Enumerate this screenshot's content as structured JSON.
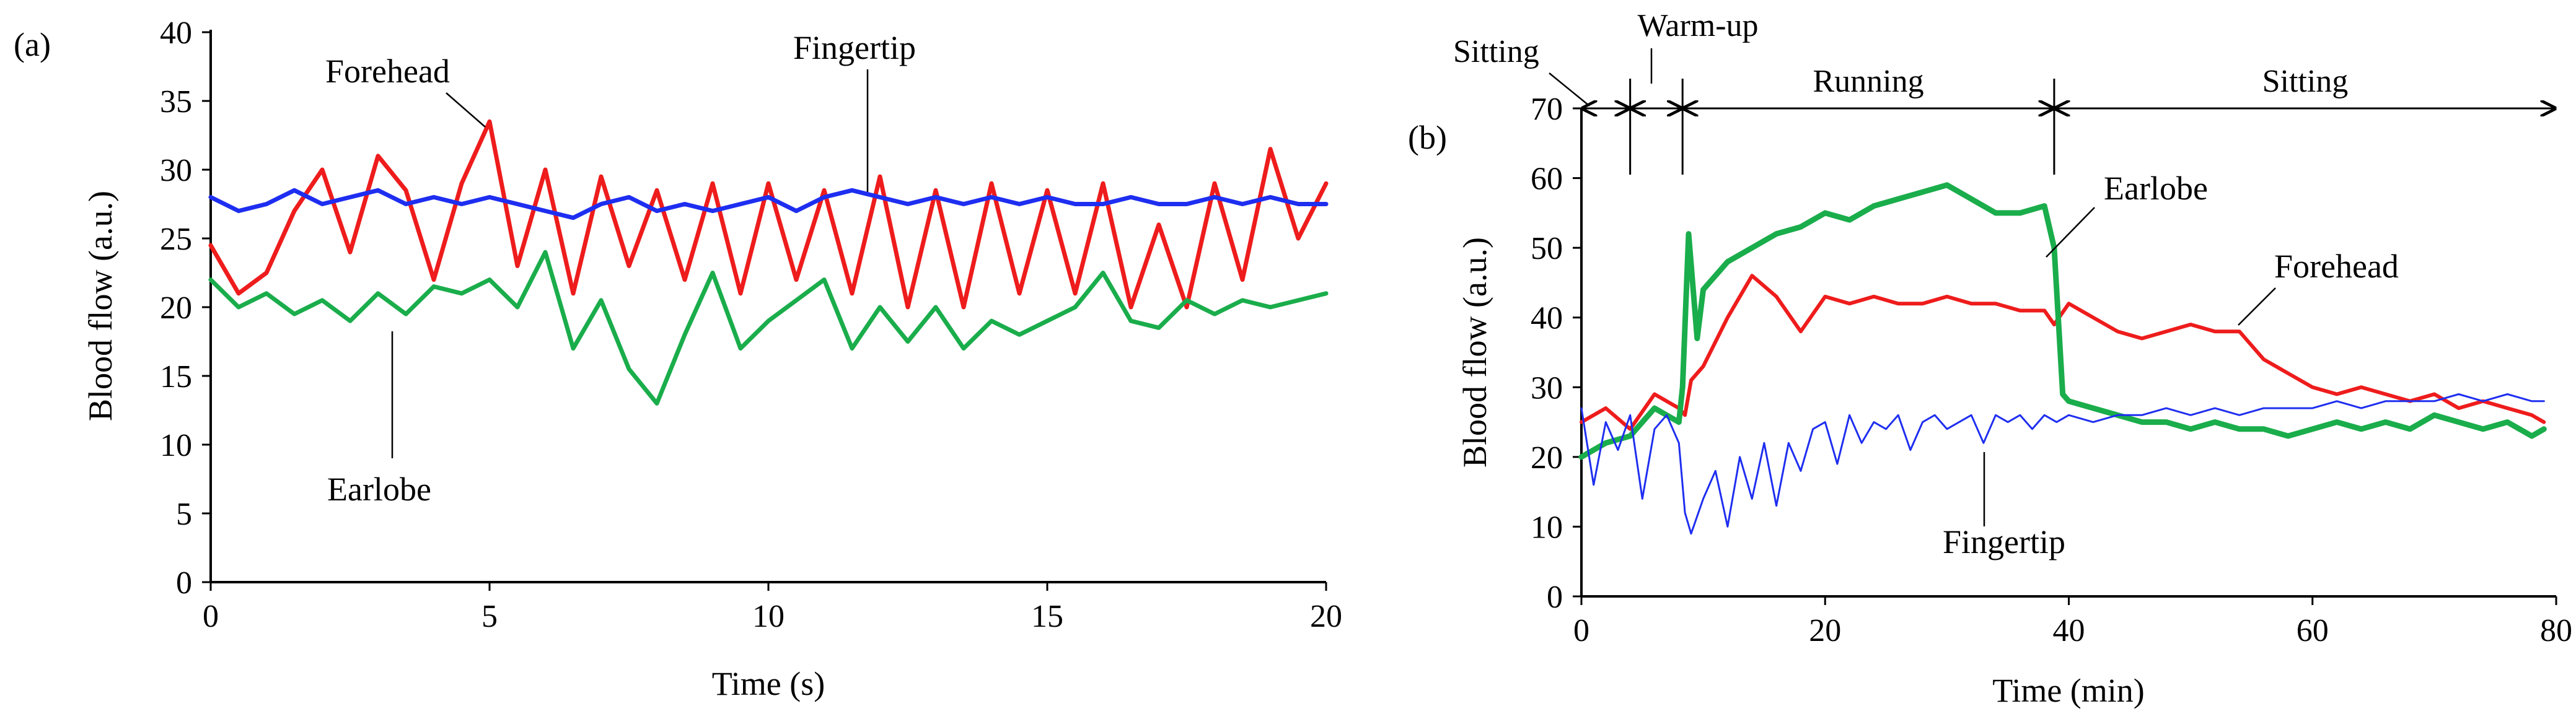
{
  "chart_data": [
    {
      "panel_label": "(a)",
      "type": "line",
      "xlabel": "Time (s)",
      "ylabel": "Blood flow (a.u.)",
      "xlim": [
        0,
        20
      ],
      "ylim": [
        0,
        40
      ],
      "xticks": [
        0,
        5,
        10,
        15,
        20
      ],
      "yticks": [
        0,
        5,
        10,
        15,
        20,
        25,
        30,
        35,
        40
      ],
      "grid": false,
      "legend": "none",
      "annotations": [
        {
          "text": "Forehead",
          "series": "Forehead"
        },
        {
          "text": "Fingertip",
          "series": "Fingertip"
        },
        {
          "text": "Earlobe",
          "series": "Earlobe"
        }
      ],
      "series": [
        {
          "name": "Forehead",
          "color": "#ee1c1c",
          "x": [
            0,
            0.5,
            1,
            1.5,
            2,
            2.5,
            3,
            3.5,
            4,
            4.5,
            5,
            5.5,
            6,
            6.5,
            7,
            7.5,
            8,
            8.5,
            9,
            9.5,
            10,
            10.5,
            11,
            11.5,
            12,
            12.5,
            13,
            13.5,
            14,
            14.5,
            15,
            15.5,
            16,
            16.5,
            17,
            17.5,
            18,
            18.5,
            19,
            19.5,
            20
          ],
          "values": [
            24.5,
            21,
            22.5,
            27,
            30,
            24,
            31,
            28.5,
            22,
            29,
            33.5,
            23,
            30,
            21,
            29.5,
            23,
            28.5,
            22,
            29,
            21,
            29,
            22,
            28.5,
            21,
            29.5,
            20,
            28.5,
            20,
            29,
            21,
            28.5,
            21,
            29,
            20,
            26,
            20,
            29,
            22,
            31.5,
            25,
            29
          ]
        },
        {
          "name": "Fingertip",
          "color": "#1e2ef0",
          "x": [
            0,
            0.5,
            1,
            1.5,
            2,
            2.5,
            3,
            3.5,
            4,
            4.5,
            5,
            5.5,
            6,
            6.5,
            7,
            7.5,
            8,
            8.5,
            9,
            9.5,
            10,
            10.5,
            11,
            11.5,
            12,
            12.5,
            13,
            13.5,
            14,
            14.5,
            15,
            15.5,
            16,
            16.5,
            17,
            17.5,
            18,
            18.5,
            19,
            19.5,
            20
          ],
          "values": [
            28,
            27,
            27.5,
            28.5,
            27.5,
            28,
            28.5,
            27.5,
            28,
            27.5,
            28,
            27.5,
            27,
            26.5,
            27.5,
            28,
            27,
            27.5,
            27,
            27.5,
            28,
            27,
            28,
            28.5,
            28,
            27.5,
            28,
            27.5,
            28,
            27.5,
            28,
            27.5,
            27.5,
            28,
            27.5,
            27.5,
            28,
            27.5,
            28,
            27.5,
            27.5
          ]
        },
        {
          "name": "Earlobe",
          "color": "#1aad4b",
          "x": [
            0,
            0.5,
            1,
            1.5,
            2,
            2.5,
            3,
            3.5,
            4,
            4.5,
            5,
            5.5,
            6,
            6.5,
            7,
            7.5,
            8,
            8.5,
            9,
            9.5,
            10,
            10.5,
            11,
            11.5,
            12,
            12.5,
            13,
            13.5,
            14,
            14.5,
            15,
            15.5,
            16,
            16.5,
            17,
            17.5,
            18,
            18.5,
            19,
            19.5,
            20
          ],
          "values": [
            22,
            20,
            21,
            19.5,
            20.5,
            19,
            21,
            19.5,
            21.5,
            21,
            22,
            20,
            24,
            17,
            20.5,
            15.5,
            13,
            18,
            22.5,
            17,
            19,
            20.5,
            22,
            17,
            20,
            17.5,
            20,
            17,
            19,
            18,
            19,
            20,
            22.5,
            19,
            18.5,
            20.5,
            19.5,
            20.5,
            20,
            20.5,
            21
          ]
        }
      ]
    },
    {
      "panel_label": "(b)",
      "type": "line",
      "xlabel": "Time (min)",
      "ylabel": "Blood flow (a.u.)",
      "xlim": [
        0,
        80
      ],
      "ylim": [
        0,
        70
      ],
      "xticks": [
        0,
        20,
        40,
        60,
        80
      ],
      "yticks": [
        0,
        10,
        20,
        30,
        40,
        50,
        60,
        70
      ],
      "grid": false,
      "legend": "none",
      "phases": [
        {
          "label": "Sitting",
          "start": 0,
          "end": 4
        },
        {
          "label": "Warm-up",
          "start": 4,
          "end": 8.3
        },
        {
          "label": "Running",
          "start": 8.3,
          "end": 38.8
        },
        {
          "label": "Sitting",
          "start": 38.8,
          "end": 80
        }
      ],
      "annotations": [
        {
          "text": "Earlobe",
          "series": "Earlobe"
        },
        {
          "text": "Forehead",
          "series": "Forehead"
        },
        {
          "text": "Fingertip",
          "series": "Fingertip"
        }
      ],
      "series": [
        {
          "name": "Forehead",
          "color": "#ee1c1c",
          "x": [
            0,
            2,
            4,
            6,
            8,
            8.5,
            9,
            10,
            12,
            14,
            16,
            18,
            20,
            22,
            24,
            26,
            28,
            30,
            32,
            34,
            36,
            38,
            38.8,
            40,
            42,
            44,
            46,
            48,
            50,
            52,
            54,
            56,
            58,
            60,
            62,
            64,
            66,
            68,
            70,
            72,
            74,
            76,
            78,
            79
          ],
          "values": [
            25,
            27,
            24,
            29,
            27,
            26,
            31,
            33,
            40,
            46,
            43,
            38,
            43,
            42,
            43,
            42,
            42,
            43,
            42,
            42,
            41,
            41,
            39,
            42,
            40,
            38,
            37,
            38,
            39,
            38,
            38,
            34,
            32,
            30,
            29,
            30,
            29,
            28,
            29,
            27,
            28,
            27,
            26,
            25
          ]
        },
        {
          "name": "Earlobe",
          "color": "#1aad4b",
          "x": [
            0,
            2,
            4,
            6,
            8,
            8.3,
            8.8,
            9.5,
            10,
            12,
            14,
            16,
            18,
            20,
            22,
            24,
            26,
            28,
            30,
            32,
            34,
            36,
            38,
            38.8,
            39.5,
            40,
            42,
            44,
            46,
            48,
            50,
            52,
            54,
            56,
            58,
            60,
            62,
            64,
            66,
            68,
            70,
            72,
            74,
            76,
            78,
            79
          ],
          "values": [
            20,
            22,
            23,
            27,
            25,
            30,
            52,
            37,
            44,
            48,
            50,
            52,
            53,
            55,
            54,
            56,
            57,
            58,
            59,
            57,
            55,
            55,
            56,
            50,
            29,
            28,
            27,
            26,
            25,
            25,
            24,
            25,
            24,
            24,
            23,
            24,
            25,
            24,
            25,
            24,
            26,
            25,
            24,
            25,
            23,
            24
          ]
        },
        {
          "name": "Fingertip",
          "color": "#1e2ef0",
          "x": [
            0,
            1,
            2,
            3,
            4,
            5,
            6,
            7,
            8,
            8.5,
            9,
            10,
            11,
            12,
            13,
            14,
            15,
            16,
            17,
            18,
            19,
            20,
            21,
            22,
            23,
            24,
            25,
            26,
            27,
            28,
            29,
            30,
            31,
            32,
            33,
            34,
            35,
            36,
            37,
            38,
            39,
            40,
            42,
            44,
            46,
            48,
            50,
            52,
            54,
            56,
            58,
            60,
            62,
            64,
            66,
            68,
            70,
            72,
            74,
            76,
            78,
            79
          ],
          "values": [
            27,
            16,
            25,
            21,
            26,
            14,
            24,
            26,
            22,
            12,
            9,
            14,
            18,
            10,
            20,
            14,
            22,
            13,
            22,
            18,
            24,
            25,
            19,
            26,
            22,
            25,
            24,
            26,
            21,
            25,
            26,
            24,
            25,
            26,
            22,
            26,
            25,
            26,
            24,
            26,
            25,
            26,
            25,
            26,
            26,
            27,
            26,
            27,
            26,
            27,
            27,
            27,
            28,
            27,
            28,
            28,
            28,
            29,
            28,
            29,
            28,
            28
          ]
        }
      ]
    }
  ]
}
